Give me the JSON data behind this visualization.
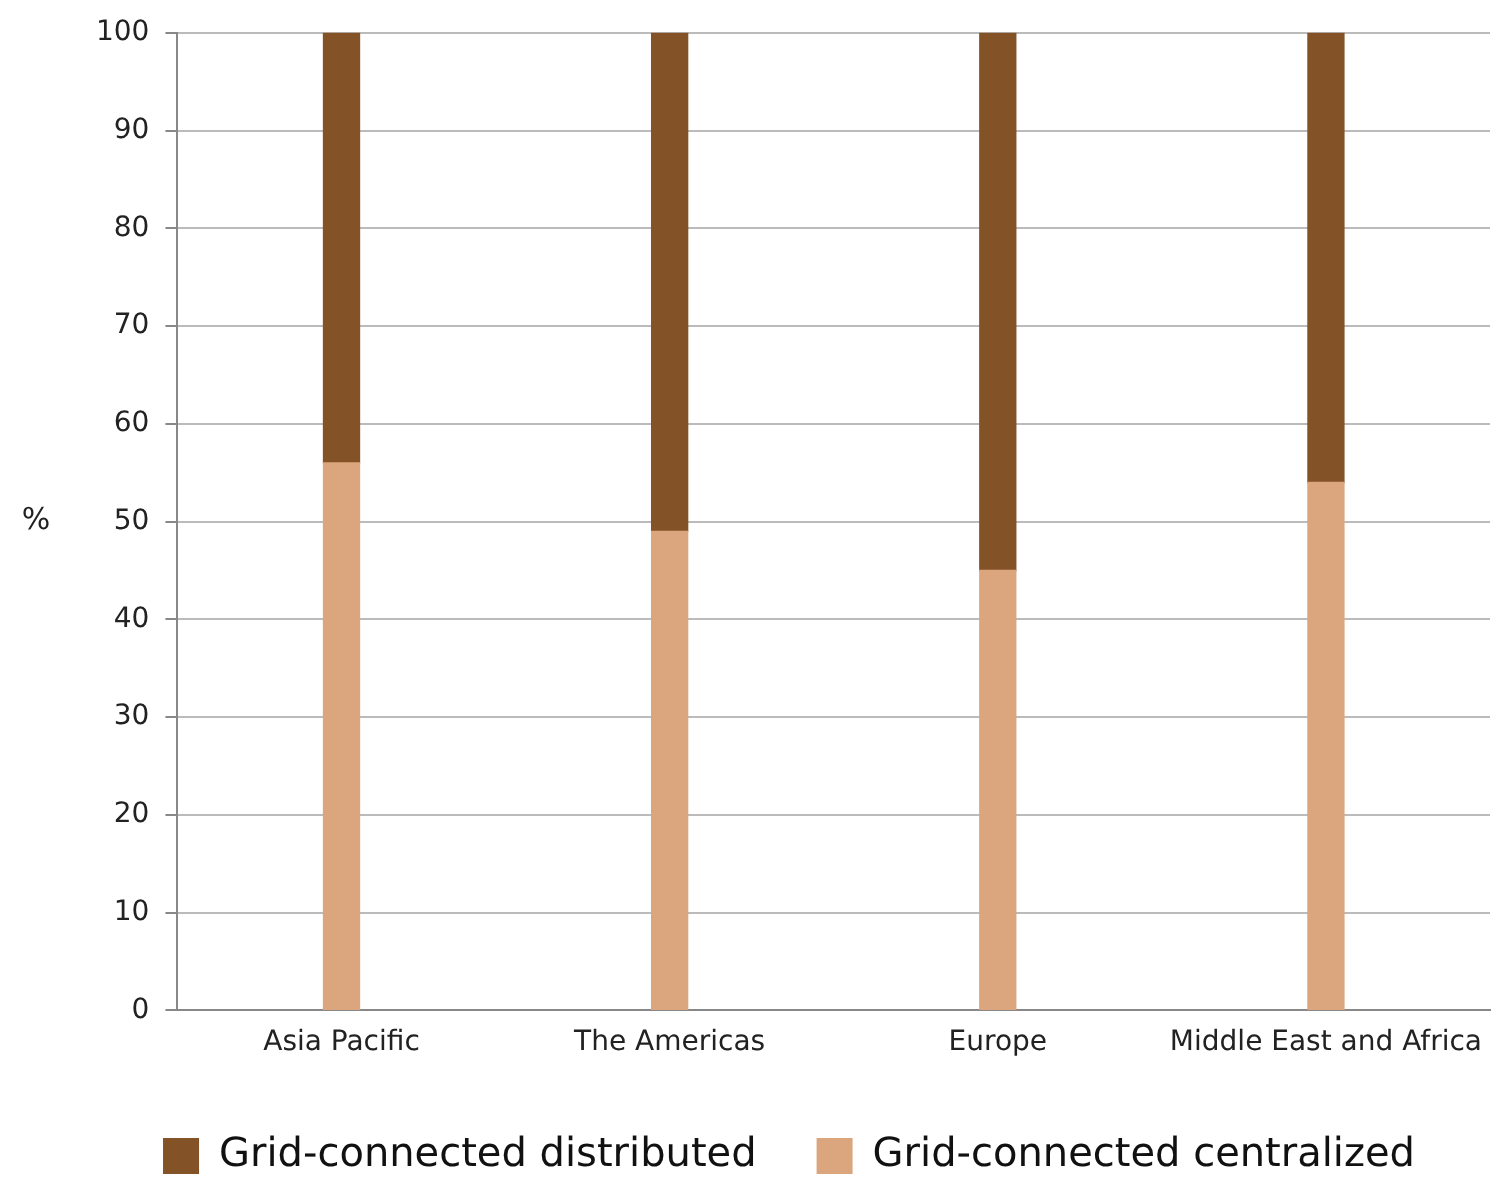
{
  "chart_data": {
    "type": "bar",
    "stacked": true,
    "ylabel": "%",
    "categories": [
      "Asia Pacific",
      "The Americas",
      "Europe",
      "Middle East and Africa"
    ],
    "series": [
      {
        "name": "Grid-connected centralized",
        "color": "#dba67e",
        "values": [
          56,
          49,
          45,
          54
        ]
      },
      {
        "name": "Grid-connected distributed",
        "color": "#835226",
        "values": [
          44,
          51,
          55,
          46
        ]
      }
    ],
    "ylim": [
      0,
      100
    ],
    "yticks": [
      0,
      10,
      20,
      30,
      40,
      50,
      60,
      70,
      80,
      90,
      100
    ],
    "grid": "y",
    "legend": "bottom"
  }
}
